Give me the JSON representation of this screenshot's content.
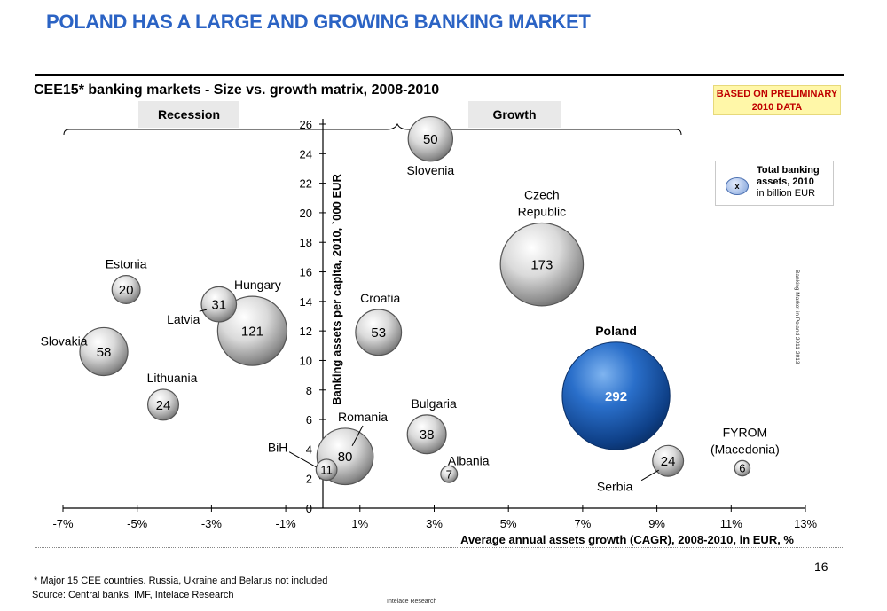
{
  "title": "POLAND HAS A LARGE AND GROWING BANKING MARKET",
  "subtitle": "CEE15* banking markets - Size vs. growth matrix, 2008-2010",
  "badge": {
    "line1": "BASED ON PRELIMINARY",
    "line2": "2010 DATA"
  },
  "legend": {
    "marker": "x",
    "line1": "Total banking",
    "line2": "assets, 2010",
    "line3": "in billion EUR"
  },
  "side_label": "Banking Market in Poland 2011-2013",
  "page_number": "16",
  "footnote": "* Major 15 CEE countries.  Russia, Ukraine and Belarus not included",
  "source": "Source: Central banks, IMF,  Intelace Research",
  "footer_brand": "Intelace Research",
  "colors": {
    "title": "#2b63c4",
    "highlight_bubble": "#1f5fb4",
    "bubble": "#c8c8c8",
    "badge_text": "#c00000",
    "badge_bg": "#fff7a8"
  },
  "chart_data": {
    "type": "scatter",
    "encoding": "bubble",
    "title": "CEE15* banking markets - Size vs. growth matrix, 2008-2010",
    "xlabel": "Average annual assets growth (CAGR), 2008-2010, in EUR, %",
    "ylabel": "Banking assets per capita, 2010, `000 EUR",
    "xlim": [
      -7,
      13
    ],
    "ylim": [
      0,
      26
    ],
    "x_ticks": [
      "-7%",
      "-5%",
      "-3%",
      "-1%",
      "1%",
      "3%",
      "5%",
      "7%",
      "9%",
      "11%",
      "13%"
    ],
    "y_ticks": [
      "0",
      "2",
      "4",
      "6",
      "8",
      "10",
      "12",
      "14",
      "16",
      "18",
      "20",
      "22",
      "24",
      "26"
    ],
    "regions": [
      "Recession",
      "Growth"
    ],
    "size_label": "Total banking assets, 2010 in billion EUR",
    "points": [
      {
        "country": "Slovenia",
        "x": 2.9,
        "y": 25.0,
        "size": 50
      },
      {
        "country": "Czech Republic",
        "x": 5.9,
        "y": 16.5,
        "size": 173
      },
      {
        "country": "Estonia",
        "x": -5.3,
        "y": 14.8,
        "size": 20
      },
      {
        "country": "Latvia",
        "x": -2.8,
        "y": 13.8,
        "size": 31
      },
      {
        "country": "Hungary",
        "x": -1.9,
        "y": 12.0,
        "size": 121
      },
      {
        "country": "Slovakia",
        "x": -5.9,
        "y": 10.6,
        "size": 58
      },
      {
        "country": "Croatia",
        "x": 1.5,
        "y": 11.9,
        "size": 53
      },
      {
        "country": "Lithuania",
        "x": -4.3,
        "y": 7.0,
        "size": 24
      },
      {
        "country": "Poland",
        "x": 7.9,
        "y": 7.6,
        "size": 292,
        "highlight": true
      },
      {
        "country": "Romania",
        "x": 0.6,
        "y": 3.5,
        "size": 80
      },
      {
        "country": "Bulgaria",
        "x": 2.8,
        "y": 5.0,
        "size": 38
      },
      {
        "country": "BiH",
        "x": 0.1,
        "y": 2.6,
        "size": 11
      },
      {
        "country": "Albania",
        "x": 3.4,
        "y": 2.3,
        "size": 7
      },
      {
        "country": "Serbia",
        "x": 9.3,
        "y": 3.2,
        "size": 24
      },
      {
        "country": "FYROM (Macedonia)",
        "x": 11.3,
        "y": 2.7,
        "size": 6
      }
    ]
  }
}
